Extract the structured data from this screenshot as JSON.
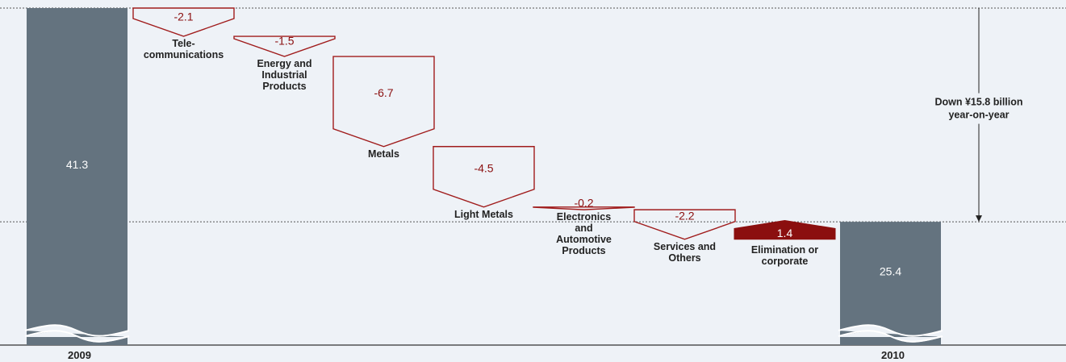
{
  "chart_data": {
    "type": "waterfall",
    "title": "",
    "start": {
      "label": "2009",
      "value": 41.3
    },
    "end": {
      "label": "2010",
      "value": 25.4
    },
    "steps": [
      {
        "label": "Tele-\ncommunications",
        "value": -2.1
      },
      {
        "label": "Energy and\nIndustrial\nProducts",
        "value": -1.5
      },
      {
        "label": "Metals",
        "value": -6.7
      },
      {
        "label": "Light Metals",
        "value": -4.5
      },
      {
        "label": "Electronics\nand\nAutomotive\nProducts",
        "value": -0.2
      },
      {
        "label": "Services and\nOthers",
        "value": -2.2
      },
      {
        "label": "Elimination or\ncorporate",
        "value": 1.4
      }
    ],
    "annotation": "Down ¥15.8 billion\nyear-on-year",
    "axis_break": true,
    "colors": {
      "total": "#64737f",
      "negative_outline": "#a01c1c",
      "positive_fill": "#8b0f0f",
      "negative_text": "#8b1010",
      "positive_text": "#ffffff",
      "total_text": "#ffffff",
      "background": "#eef2f7",
      "guide_line": "#555555"
    }
  }
}
